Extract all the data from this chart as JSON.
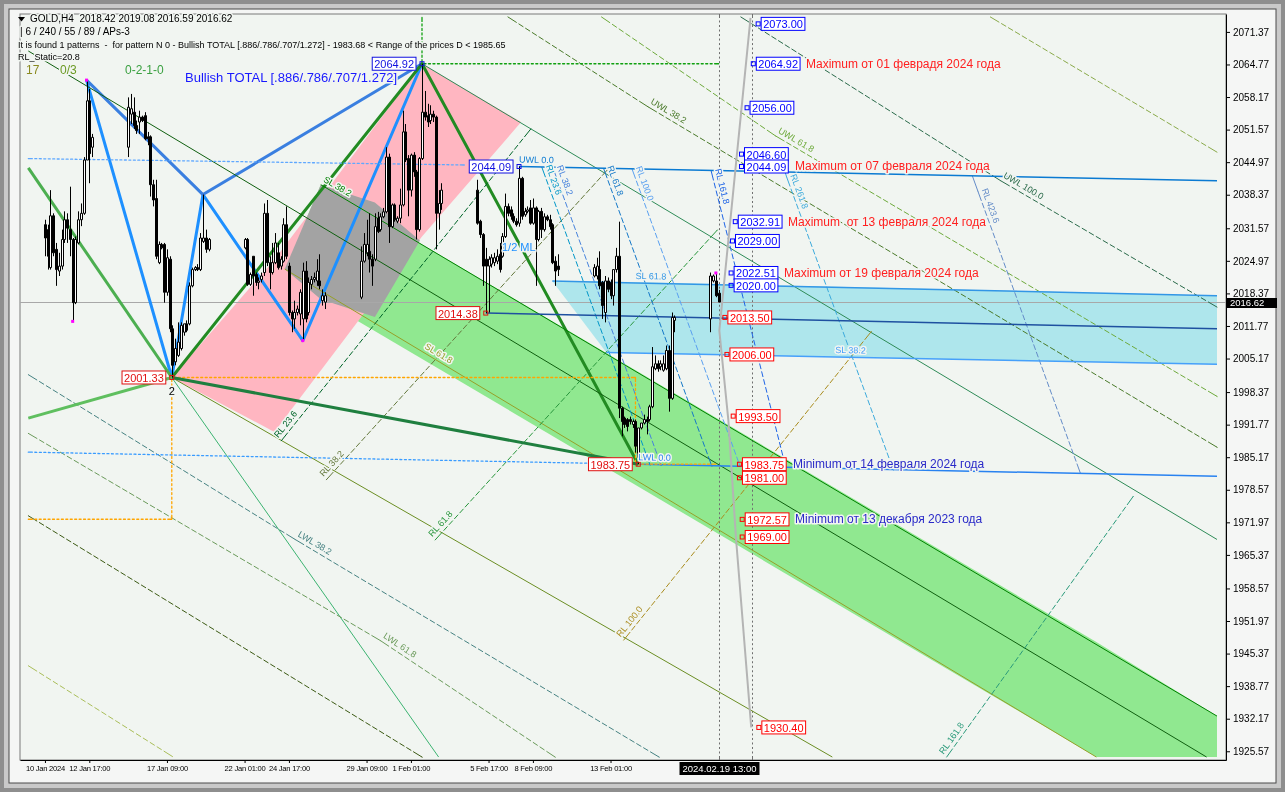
{
  "chart_data": {
    "type": "candlestick",
    "title": "GOLD,H4  2018.42 2019.08 2016.59 2016.62",
    "subtitle": "| 6 / 240 / 55 / 89 / APs-3",
    "annotations": [
      "It is found 1 patterns  -  for pattern N 0 - Bullish TOTAL [.886/.786/.707/1.272] - 1983.68 < Range of the prices D < 1985.65",
      "RL_Static=20.8",
      "17",
      "0/3",
      "0-2-1-0",
      "Bullish TOTAL [.886/.786/.707/1.272]",
      {
        "text": "2",
        "x": "2024-01-17T16:00",
        "y": 2001.33
      },
      "1/2 ML",
      "Maximum от 01 феврадя 2024 года",
      "Maximum от 07 февраля 2024 года",
      "Maximum  от 13 февраля 2024 года",
      "Maximum от 19 февраля 2024 года",
      "Minimum от 14 февраля 2024 года",
      "Minimum от 13 декабря 2023 года"
    ],
    "x": [
      "2024-01-10T01:00",
      "2024-01-10T05:00",
      "2024-01-10T09:00",
      "2024-01-10T13:00",
      "2024-01-10T17:00",
      "2024-01-10T21:00",
      "2024-01-11T01:00",
      "2024-01-11T05:00",
      "2024-01-11T09:00",
      "2024-01-11T13:00",
      "2024-01-11T17:00",
      "2024-01-11T21:00",
      "2024-01-12T01:00",
      "2024-01-12T05:00",
      "2024-01-12T09:00",
      "2024-01-12T13:00",
      "2024-01-12T17:00",
      "2024-01-12T21:00",
      "2024-01-15T01:00",
      "2024-01-15T05:00",
      "2024-01-15T09:00",
      "2024-01-15T13:00",
      "2024-01-15T17:00",
      "2024-01-15T21:00",
      "2024-01-16T01:00",
      "2024-01-16T05:00",
      "2024-01-16T09:00",
      "2024-01-16T13:00",
      "2024-01-16T17:00",
      "2024-01-16T21:00",
      "2024-01-17T01:00",
      "2024-01-17T05:00",
      "2024-01-17T09:00",
      "2024-01-17T13:00",
      "2024-01-17T17:00",
      "2024-01-17T21:00",
      "2024-01-18T01:00",
      "2024-01-18T05:00",
      "2024-01-18T09:00",
      "2024-01-18T13:00",
      "2024-01-18T17:00",
      "2024-01-18T21:00",
      "2024-01-19T01:00",
      "2024-01-19T05:00",
      "2024-01-19T09:00",
      "2024-01-19T13:00",
      "2024-01-19T17:00",
      "2024-01-19T21:00",
      "2024-01-22T01:00",
      "2024-01-22T05:00",
      "2024-01-22T09:00",
      "2024-01-22T13:00",
      "2024-01-22T17:00",
      "2024-01-22T21:00",
      "2024-01-23T01:00",
      "2024-01-23T05:00",
      "2024-01-23T09:00",
      "2024-01-23T13:00",
      "2024-01-23T17:00",
      "2024-01-23T21:00",
      "2024-01-24T01:00",
      "2024-01-24T05:00",
      "2024-01-24T09:00",
      "2024-01-24T13:00",
      "2024-01-24T17:00",
      "2024-01-24T21:00",
      "2024-01-25T01:00",
      "2024-01-25T05:00",
      "2024-01-25T09:00",
      "2024-01-25T13:00",
      "2024-01-25T17:00",
      "2024-01-25T21:00",
      "2024-01-26T01:00",
      "2024-01-26T05:00",
      "2024-01-26T09:00",
      "2024-01-26T13:00",
      "2024-01-26T17:00",
      "2024-01-26T21:00",
      "2024-01-29T01:00",
      "2024-01-29T05:00",
      "2024-01-29T09:00",
      "2024-01-29T13:00",
      "2024-01-29T17:00",
      "2024-01-29T21:00",
      "2024-01-30T01:00",
      "2024-01-30T05:00",
      "2024-01-30T09:00",
      "2024-01-30T13:00",
      "2024-01-30T17:00",
      "2024-01-30T21:00",
      "2024-01-31T01:00",
      "2024-01-31T05:00",
      "2024-01-31T09:00",
      "2024-01-31T13:00",
      "2024-01-31T17:00",
      "2024-01-31T21:00",
      "2024-02-01T01:00",
      "2024-02-01T05:00",
      "2024-02-01T09:00",
      "2024-02-01T13:00",
      "2024-02-01T17:00",
      "2024-02-01T21:00",
      "2024-02-02T01:00",
      "2024-02-02T05:00",
      "2024-02-02T09:00",
      "2024-02-02T13:00",
      "2024-02-02T17:00",
      "2024-02-02T21:00",
      "2024-02-05T01:00",
      "2024-02-05T05:00",
      "2024-02-05T09:00",
      "2024-02-05T13:00",
      "2024-02-05T17:00",
      "2024-02-05T21:00",
      "2024-02-06T01:00",
      "2024-02-06T05:00",
      "2024-02-06T09:00",
      "2024-02-06T13:00",
      "2024-02-06T17:00",
      "2024-02-06T21:00",
      "2024-02-07T01:00",
      "2024-02-07T05:00",
      "2024-02-07T09:00",
      "2024-02-07T13:00",
      "2024-02-07T17:00",
      "2024-02-07T21:00",
      "2024-02-08T01:00",
      "2024-02-08T05:00",
      "2024-02-08T09:00",
      "2024-02-08T13:00",
      "2024-02-08T17:00",
      "2024-02-08T21:00",
      "2024-02-09T01:00",
      "2024-02-09T05:00",
      "2024-02-09T09:00",
      "2024-02-09T13:00",
      "2024-02-09T17:00",
      "2024-02-09T21:00",
      "2024-02-12T01:00",
      "2024-02-12T05:00",
      "2024-02-12T09:00",
      "2024-02-12T13:00",
      "2024-02-12T17:00",
      "2024-02-12T21:00",
      "2024-02-13T01:00",
      "2024-02-13T05:00",
      "2024-02-13T09:00",
      "2024-02-13T13:00",
      "2024-02-13T17:00",
      "2024-02-13T21:00",
      "2024-02-14T01:00",
      "2024-02-14T05:00",
      "2024-02-14T09:00",
      "2024-02-14T13:00",
      "2024-02-14T17:00",
      "2024-02-14T21:00",
      "2024-02-15T01:00",
      "2024-02-15T05:00",
      "2024-02-15T09:00",
      "2024-02-15T13:00",
      "2024-02-15T17:00",
      "2024-02-15T21:00",
      "2024-02-16T01:00",
      "2024-02-16T05:00",
      "2024-02-16T09:00",
      "2024-02-16T13:00",
      "2024-02-16T17:00",
      "2024-02-16T21:00",
      "2024-02-19T01:00",
      "2024-02-19T05:00",
      "2024-02-19T09:00",
      "2024-02-19T13:00"
    ],
    "ohlc": [
      [
        2032.3,
        2033.3,
        2025.9,
        2029.6
      ],
      [
        2031.3,
        2032.3,
        2023.2,
        2025.9
      ],
      [
        2023.6,
        2039.3,
        2023.2,
        2034.1
      ],
      [
        2034.1,
        2034.6,
        2025.9,
        2026.6
      ],
      [
        2027.3,
        2028.6,
        2019.9,
        2023.2
      ],
      [
        2022.9,
        2026.6,
        2021.9,
        2023.9
      ],
      [
        2023.9,
        2031.3,
        2023.2,
        2029.3
      ],
      [
        2029.3,
        2035.0,
        2028.6,
        2033.3
      ],
      [
        2033.3,
        2034.6,
        2028.6,
        2031.6
      ],
      [
        2031.3,
        2040.0,
        2025.9,
        2029.3
      ],
      [
        2029.3,
        2029.6,
        2012.7,
        2016.5
      ],
      [
        2016.5,
        2029.9,
        2016.2,
        2029.3
      ],
      [
        2028.6,
        2035.0,
        2028.3,
        2033.3
      ],
      [
        2033.3,
        2036.6,
        2032.0,
        2034.6
      ],
      [
        2034.6,
        2046.0,
        2034.3,
        2045.4
      ],
      [
        2045.4,
        2061.6,
        2045.4,
        2057.4
      ],
      [
        2057.4,
        2059.8,
        2040.7,
        2046.7
      ],
      [
        2048.0,
        2050.7,
        2046.0,
        2050.0
      ],
      [
        2048.0,
        2058.1,
        2046.0,
        2056.1
      ],
      [
        2054.7,
        2058.8,
        2052.7,
        2055.8
      ],
      [
        2055.1,
        2058.1,
        2051.7,
        2052.4
      ],
      [
        2052.4,
        2053.4,
        2050.7,
        2051.4
      ],
      [
        2053.1,
        2055.4,
        2050.7,
        2054.1
      ],
      [
        2054.1,
        2054.4,
        2053.1,
        2053.4
      ],
      [
        2054.4,
        2055.1,
        2049.4,
        2049.7
      ],
      [
        2050.1,
        2051.1,
        2048.4,
        2049.7
      ],
      [
        2050.1,
        2050.4,
        2038.0,
        2040.4
      ],
      [
        2040.4,
        2041.4,
        2036.0,
        2037.3
      ],
      [
        2037.6,
        2041.4,
        2025.3,
        2025.9
      ],
      [
        2024.6,
        2028.9,
        2024.3,
        2028.3
      ],
      [
        2028.3,
        2028.6,
        2027.3,
        2027.6
      ],
      [
        2028.3,
        2028.6,
        2016.5,
        2018.6
      ],
      [
        2018.6,
        2027.3,
        2017.9,
        2025.6
      ],
      [
        2025.3,
        2025.9,
        2010.5,
        2011.2
      ],
      [
        2011.2,
        2011.9,
        2001.33,
        2003.8
      ],
      [
        2004.5,
        2009.2,
        2003.8,
        2007.2
      ],
      [
        2005.8,
        2012.5,
        2005.5,
        2008.5
      ],
      [
        2007.2,
        2012.5,
        2006.8,
        2011.9
      ],
      [
        2010.5,
        2012.2,
        2009.8,
        2012.2
      ],
      [
        2012.2,
        2012.9,
        2010.5,
        2010.9
      ],
      [
        2012.2,
        2020.6,
        2011.9,
        2019.9
      ],
      [
        2019.9,
        2023.6,
        2019.6,
        2023.2
      ],
      [
        2023.2,
        2023.9,
        2022.9,
        2023.6
      ],
      [
        2023.6,
        2024.3,
        2022.9,
        2023.2
      ],
      [
        2023.2,
        2030.6,
        2022.9,
        2029.6
      ],
      [
        2028.9,
        2038.4,
        2028.6,
        2029.6
      ],
      [
        2029.6,
        2031.3,
        2026.6,
        2027.3
      ],
      [
        2027.3,
        2029.6,
        2026.9,
        2029.3
      ],
      [
        2027.6,
        2029.6,
        2027.3,
        2029.3
      ],
      [
        2029.3,
        2029.6,
        2019.9,
        2020.2
      ],
      [
        2020.2,
        2022.6,
        2019.9,
        2022.2
      ],
      [
        2025.9,
        2025.9,
        2017.9,
        2021.9
      ],
      [
        2022.2,
        2022.6,
        2019.9,
        2020.6
      ],
      [
        2020.6,
        2021.6,
        2019.2,
        2020.9
      ],
      [
        2021.2,
        2022.6,
        2020.6,
        2021.9
      ],
      [
        2022.6,
        2036.6,
        2021.9,
        2034.6
      ],
      [
        2034.6,
        2037.3,
        2023.9,
        2024.6
      ],
      [
        2024.6,
        2025.9,
        2019.2,
        2022.6
      ],
      [
        2022.6,
        2028.6,
        2022.2,
        2024.6
      ],
      [
        2024.6,
        2030.6,
        2024.3,
        2028.6
      ],
      [
        2026.6,
        2028.6,
        2023.2,
        2023.6
      ],
      [
        2023.9,
        2025.9,
        2023.2,
        2025.3
      ],
      [
        2024.9,
        2033.6,
        2024.6,
        2032.3
      ],
      [
        2032.3,
        2036.0,
        2025.3,
        2025.9
      ],
      [
        2023.9,
        2024.6,
        2013.9,
        2014.5
      ],
      [
        2014.5,
        2014.9,
        2010.5,
        2013.2
      ],
      [
        2013.2,
        2016.9,
        2011.2,
        2014.5
      ],
      [
        2014.5,
        2015.9,
        2013.9,
        2015.2
      ],
      [
        2014.2,
        2019.2,
        2011.9,
        2018.6
      ],
      [
        2013.2,
        2024.6,
        2008.8,
        2022.9
      ],
      [
        2022.9,
        2024.9,
        2012.5,
        2013.2
      ],
      [
        2014.5,
        2021.6,
        2013.9,
        2020.6
      ],
      [
        2020.2,
        2021.9,
        2019.2,
        2021.2
      ],
      [
        2021.2,
        2022.6,
        2020.6,
        2021.6
      ],
      [
        2020.9,
        2025.3,
        2019.9,
        2022.9
      ],
      [
        2020.9,
        2026.3,
        2019.2,
        2019.9
      ],
      [
        2016.9,
        2019.2,
        2015.9,
        2017.9
      ],
      [
        2016.6,
        2018.6,
        2015.2,
        2017.9
      ],
      [
        2017.6,
        2027.9,
        2017.2,
        2024.9
      ],
      [
        2024.9,
        2030.6,
        2024.6,
        2028.3
      ],
      [
        2026.6,
        2033.3,
        2025.9,
        2028.3
      ],
      [
        2026.9,
        2034.6,
        2022.6,
        2025.3
      ],
      [
        2025.3,
        2026.3,
        2019.9,
        2023.9
      ],
      [
        2025.3,
        2034.6,
        2024.9,
        2031.9
      ],
      [
        2033.6,
        2034.9,
        2030.6,
        2030.9
      ],
      [
        2031.3,
        2034.6,
        2030.9,
        2033.9
      ],
      [
        2033.9,
        2035.7,
        2033.6,
        2034.9
      ],
      [
        2034.9,
        2048.0,
        2034.6,
        2046.0
      ],
      [
        2046.0,
        2046.7,
        2028.6,
        2031.9
      ],
      [
        2031.9,
        2036.6,
        2031.6,
        2036.3
      ],
      [
        2036.3,
        2036.6,
        2032.9,
        2033.3
      ],
      [
        2033.0,
        2034.0,
        2032.6,
        2033.6
      ],
      [
        2033.6,
        2039.6,
        2032.6,
        2036.3
      ],
      [
        2036.3,
        2055.4,
        2036.0,
        2051.1
      ],
      [
        2051.1,
        2052.7,
        2045.0,
        2045.4
      ],
      [
        2045.7,
        2046.4,
        2034.0,
        2039.3
      ],
      [
        2039.3,
        2046.7,
        2038.0,
        2046.4
      ],
      [
        2046.4,
        2047.0,
        2042.0,
        2043.0
      ],
      [
        2043.0,
        2043.4,
        2029.3,
        2031.3
      ],
      [
        2031.3,
        2046.0,
        2030.9,
        2045.7
      ],
      [
        2045.7,
        2064.92,
        2045.4,
        2055.1
      ],
      [
        2055.1,
        2059.4,
        2053.4,
        2054.1
      ],
      [
        2054.4,
        2056.8,
        2052.1,
        2053.1
      ],
      [
        2053.4,
        2056.5,
        2052.7,
        2054.7
      ],
      [
        2054.7,
        2055.4,
        2053.1,
        2054.1
      ],
      [
        2054.1,
        2054.4,
        2027.3,
        2034.6
      ],
      [
        2034.6,
        2039.3,
        2031.3,
        2036.6
      ],
      [
        2036.6,
        2040.7,
        2035.3,
        2039.3
      ],
      [
        2039.3,
        2041.4,
        2032.3,
        2032.6
      ],
      [
        2033.0,
        2033.3,
        2029.6,
        2030.3
      ],
      [
        2030.3,
        2030.6,
        2019.9,
        2023.9
      ],
      [
        2025.3,
        2027.6,
        2014.38,
        2023.9
      ],
      [
        2023.9,
        2025.9,
        2014.5,
        2025.3
      ],
      [
        2024.3,
        2026.3,
        2023.6,
        2025.6
      ],
      [
        2024.6,
        2026.6,
        2023.9,
        2025.6
      ],
      [
        2024.9,
        2027.3,
        2024.3,
        2025.9
      ],
      [
        2026.3,
        2028.6,
        2022.6,
        2023.2
      ],
      [
        2025.9,
        2030.6,
        2025.6,
        2029.9
      ],
      [
        2029.9,
        2038.6,
        2029.6,
        2036.0
      ],
      [
        2036.0,
        2036.6,
        2034.0,
        2034.6
      ],
      [
        2035.3,
        2036.0,
        2033.3,
        2034.0
      ],
      [
        2034.0,
        2034.6,
        2032.6,
        2033.0
      ],
      [
        2033.0,
        2033.6,
        2031.9,
        2032.3
      ],
      [
        2032.6,
        2044.09,
        2031.9,
        2041.7
      ],
      [
        2041.7,
        2042.0,
        2033.3,
        2034.0
      ],
      [
        2034.3,
        2035.7,
        2033.9,
        2035.0
      ],
      [
        2035.0,
        2036.0,
        2034.6,
        2035.3
      ],
      [
        2035.7,
        2037.3,
        2032.3,
        2032.6
      ],
      [
        2032.6,
        2037.6,
        2032.3,
        2035.7
      ],
      [
        2035.7,
        2036.0,
        2019.9,
        2029.3
      ],
      [
        2029.3,
        2035.3,
        2028.9,
        2035.0
      ],
      [
        2035.0,
        2035.7,
        2029.6,
        2031.3
      ],
      [
        2031.3,
        2034.6,
        2030.9,
        2033.9
      ],
      [
        2033.9,
        2034.3,
        2033.0,
        2033.3
      ],
      [
        2033.3,
        2034.3,
        2031.3,
        2031.9
      ],
      [
        2032.3,
        2032.6,
        2024.3,
        2024.6
      ],
      [
        2024.9,
        2025.9,
        2019.9,
        2022.9
      ],
      [
        2023.9,
        2026.3,
        2021.9,
        2023.2
      ],
      [
        2021.9,
        2024.3,
        2021.6,
        2023.6
      ],
      [
        2021.9,
        2025.6,
        2021.2,
        2023.9
      ],
      [
        2023.2,
        2026.9,
        2019.2,
        2019.9
      ],
      [
        2020.6,
        2020.9,
        2013.2,
        2015.9
      ],
      [
        2014.5,
        2021.9,
        2012.5,
        2020.9
      ],
      [
        2020.9,
        2021.6,
        2018.6,
        2019.2
      ],
      [
        2020.6,
        2021.2,
        2017.2,
        2017.9
      ],
      [
        2017.9,
        2023.2,
        2015.9,
        2023.2
      ],
      [
        2023.2,
        2027.6,
        2022.6,
        2025.9
      ],
      [
        2025.9,
        2032.91,
        1993.1,
        1995.1
      ],
      [
        1995.1,
        1995.4,
        1989.4,
        1992.4
      ],
      [
        1993.1,
        1993.4,
        1991.1,
        1991.8
      ],
      [
        1992.8,
        1993.1,
        1990.4,
        1991.4
      ],
      [
        1992.8,
        1993.4,
        1991.8,
        1992.4
      ],
      [
        1991.8,
        1992.8,
        1991.1,
        1992.4
      ],
      [
        1992.4,
        1992.8,
        1986.1,
        1987.4
      ],
      [
        1985.1,
        1991.1,
        1983.75,
        1991.1
      ],
      [
        1991.1,
        1992.1,
        1990.8,
        1992.1
      ],
      [
        1992.1,
        1993.8,
        1991.8,
        1992.8
      ],
      [
        1992.8,
        1993.4,
        1989.8,
        1992.4
      ],
      [
        1992.8,
        1995.8,
        1992.4,
        1995.4
      ],
      [
        1995.4,
        2007.5,
        1995.1,
        2003.5
      ],
      [
        2003.1,
        2005.8,
        2002.8,
        2004.1
      ],
      [
        2004.1,
        2004.8,
        2002.5,
        2003.1
      ],
      [
        2003.5,
        2004.8,
        2002.8,
        2004.1
      ],
      [
        2002.8,
        2005.8,
        2002.5,
        2004.1
      ],
      [
        2003.1,
        2007.8,
        2002.8,
        2006.8
      ],
      [
        2006.8,
        2007.8,
        1994.4,
        1997.1
      ],
      [
        1997.1,
        2014.5,
        1996.8,
        2013.5
      ],
      [
        2012.9,
        2013.9,
        2010.5,
        2013.5
      ],
      [
        2013.2,
        2022.6,
        2010.5,
        2021.9
      ],
      [
        2020.9,
        2022.2,
        2020.6,
        2021.9
      ],
      [
        2020.9,
        2022.51,
        2017.6,
        2017.9
      ],
      [
        2018.42,
        2019.08,
        2016.59,
        2016.62
      ]
    ],
    "xlim": [
      "2024-01-08T13:00",
      "2024-03-21T01:00"
    ],
    "xticks": [
      {
        "value": "2024-01-10T01:00",
        "label": "10 Jan 2024"
      },
      {
        "value": "2024-01-12T17:00",
        "label": "12 Jan 17:00"
      },
      {
        "value": "2024-01-17T09:00",
        "label": "17 Jan 09:00"
      },
      {
        "value": "2024-01-22T01:00",
        "label": "22 Jan 01:00"
      },
      {
        "value": "2024-01-24T17:00",
        "label": "24 Jan 17:00"
      },
      {
        "value": "2024-01-29T09:00",
        "label": "29 Jan 09:00"
      },
      {
        "value": "2024-02-01T01:00",
        "label": "1 Feb 01:00"
      },
      {
        "value": "2024-02-05T17:00",
        "label": "5 Feb 17:00"
      },
      {
        "value": "2024-02-08T09:00",
        "label": "8 Feb 09:00"
      },
      {
        "value": "2024-02-13T01:00",
        "label": "13 Feb 01:00"
      }
    ],
    "ylim": [
      1923.8,
      2075.0
    ],
    "yticks": [
      2071.37,
      2064.77,
      2058.17,
      2051.57,
      2044.97,
      2038.37,
      2031.57,
      2024.97,
      2018.37,
      2011.77,
      2005.17,
      1998.37,
      1991.77,
      1985.17,
      1978.57,
      1971.97,
      1965.37,
      1958.57,
      1951.97,
      1945.37,
      1938.77,
      1932.17,
      1925.57
    ],
    "ref_lines": [
      {
        "axis": "x",
        "value": "2024-02-19T13:00",
        "label": "2024.02.19 13:00",
        "line_style": "dotted",
        "color": "#6e6e6e"
      },
      {
        "axis": "x",
        "value": "2024-02-21T13:00",
        "line_style": "dotted",
        "color": "#6e6e6e"
      },
      {
        "axis": "y",
        "value": 2016.62,
        "label": "2016.62",
        "color": "#a8a8a8"
      }
    ],
    "series": [
      {
        "type": "line",
        "color": "#90e890",
        "x": [
          "2024-01-24T11:00",
          "2024-01-26T15:00",
          "2024-03-13T06:00",
          "2024-03-20T12:00"
        ],
        "values": [
          null,
          null,
          null,
          null
        ],
        "upper": [
          2023.3,
          2040.4,
          1947.7,
          1932.7
        ],
        "lower": [
          2023.3,
          2017.2,
          1924.4,
          1924.4
        ]
      },
      {
        "type": "line",
        "color": "#ffb6c1",
        "x": [
          "2024-01-17T16:00",
          "2024-01-23T20:00",
          "2024-02-01T17:00",
          "2024-02-07T16:00"
        ],
        "values": [
          null,
          null,
          null,
          null
        ],
        "upper": [
          2001.33,
          2025.2,
          2064.92,
          2053.1
        ],
        "lower": [
          2001.33,
          1990.3,
          2029.9,
          2053.1
        ]
      },
      {
        "type": "line",
        "color": "#a3a3a3",
        "x": [
          "2024-01-24T11:00",
          "2024-01-26T15:00",
          "2024-01-29T21:00",
          "2024-02-01T14:00"
        ],
        "values": [
          null,
          null,
          null,
          null
        ],
        "upper": [
          2023.3,
          2040.4,
          2036.8,
          2029.1
        ],
        "lower": [
          2023.3,
          2017.2,
          2013.6,
          2029.1
        ]
      },
      {
        "type": "line",
        "color": "#aee6ec",
        "x": [
          "2024-02-09T13:00",
          "2024-02-12T19:00",
          "2024-03-20T12:00"
        ],
        "values": [
          null,
          null,
          null
        ],
        "upper": [
          2020.9,
          2020.8,
          2017.9
        ],
        "lower": [
          2020.9,
          2006.4,
          2004.0
        ]
      },
      {
        "type": "line",
        "color": "#1e90ff",
        "x": [
          "2024-01-12T13:00",
          "2024-01-17T16:00",
          "2024-01-19T13:00",
          "2024-01-25T13:00",
          "2024-02-01T17:00"
        ],
        "values": [
          2061.6,
          2001.33,
          2038.4,
          2008.8,
          2064.92
        ]
      },
      {
        "type": "line",
        "color": "#3a7fe0",
        "x": [
          "2024-01-12T13:00",
          "2024-01-19T13:00",
          "2024-02-01T17:00"
        ],
        "values": [
          2061.6,
          2038.4,
          2064.92
        ]
      },
      {
        "type": "line",
        "color": "#228b22",
        "x": [
          "2024-01-17T16:00",
          "2024-02-01T17:00",
          "2024-02-14T17:00"
        ],
        "values": [
          2001.33,
          2064.92,
          1983.75
        ]
      },
      {
        "type": "line",
        "color": "#4caf50",
        "x": [
          "2024-01-09T01:00",
          "2024-01-17T16:00"
        ],
        "values": [
          2043.8,
          2001.33
        ]
      },
      {
        "type": "line",
        "color": "#0f5f0f",
        "x": [
          "2024-01-09T01:00",
          "2024-03-19T21:00"
        ],
        "values": [
          2067.5,
          1924.4
        ]
      },
      {
        "type": "line",
        "color": "#2e8b57",
        "x": [
          "2024-02-01T17:00",
          "2024-03-20T12:00"
        ],
        "values": [
          2064.92,
          1968.5
        ]
      },
      {
        "type": "line",
        "color": "#6b8e23",
        "x": [
          "2024-01-17T16:00",
          "2024-02-26T09:00"
        ],
        "values": [
          2001.33,
          1924.4
        ]
      },
      {
        "type": "line",
        "color": "#3cb371",
        "x": [
          "2024-01-17T16:00",
          "2024-02-02T17:00"
        ],
        "values": [
          2001.33,
          1924.4
        ]
      },
      {
        "type": "line",
        "name": "SL 38.2",
        "color": "#008000",
        "x": [
          "2024-01-26T15:00",
          "2024-03-20T12:00"
        ],
        "values": [
          2040.4,
          1932.7
        ]
      },
      {
        "type": "line",
        "name": "SL 61.8",
        "color": "#96a028",
        "x": [
          "2024-01-24T11:00",
          "2024-02-01T17:00",
          "2024-03-13T06:00"
        ],
        "values": [
          2023.3,
          2006.6,
          1924.4
        ]
      },
      {
        "type": "line",
        "name": "UWL 38.2",
        "color": "#4a7a2a",
        "line_style": "dashed",
        "x": [
          "2024-02-06T21:00",
          "2024-02-15T07:00",
          "2024-03-20T12:00"
        ],
        "values": [
          2074.4,
          2056.2,
          1987.2
        ]
      },
      {
        "type": "line",
        "name": "UWL 61.8",
        "color": "#6eaa3c",
        "line_style": "dashed",
        "x": [
          "2024-02-12T12:00",
          "2024-02-22T23:00",
          "2024-03-20T12:00"
        ],
        "values": [
          2074.4,
          2050.3,
          1997.5
        ]
      },
      {
        "type": "line",
        "name": "UWL 100.0",
        "color": "#2a6a4a",
        "line_style": "dashed",
        "x": [
          "2024-02-20T21:00",
          "2024-03-07T12:00",
          "2024-03-20T12:00"
        ],
        "values": [
          2074.4,
          2041.2,
          2015.6
        ]
      },
      {
        "type": "line",
        "color": "#8aaa4a",
        "line_style": "dashed",
        "x": [
          "2024-03-06T21:00",
          "2024-03-20T12:00"
        ],
        "values": [
          2074.4,
          2047.0
        ]
      },
      {
        "type": "line",
        "name": "LWL 38.2",
        "color": "#468282",
        "line_style": "dashed",
        "x": [
          "2024-01-09T01:00",
          "2024-01-25T02:00",
          "2024-02-15T23:00"
        ],
        "values": [
          2001.9,
          1968.5,
          1924.4
        ]
      },
      {
        "type": "line",
        "name": "LWL 61.8",
        "color": "#6a9a5a",
        "line_style": "dashed",
        "x": [
          "2024-01-09T01:00",
          "2024-01-30T05:00",
          "2024-02-09T17:00"
        ],
        "values": [
          1990.0,
          1948.0,
          1924.4
        ]
      },
      {
        "type": "line",
        "color": "#3c5a14",
        "line_style": "dashed",
        "x": [
          "2024-01-09T01:00",
          "2024-02-01T17:00"
        ],
        "values": [
          1973.3,
          1924.4
        ]
      },
      {
        "type": "line",
        "color": "#aabe5a",
        "line_style": "dashed",
        "x": [
          "2024-01-09T01:00",
          "2024-01-17T17:00"
        ],
        "values": [
          1942.9,
          1924.5
        ]
      },
      {
        "type": "line",
        "name": "RL 23.6",
        "color": "#006428",
        "line_style": "dashed",
        "x": [
          "2024-01-24T06:00",
          "2024-02-08T06:00"
        ],
        "values": [
          1988.5,
          2051.7
        ]
      },
      {
        "type": "line",
        "name": "RL 38.2",
        "color": "#64783c",
        "line_style": "dashed",
        "x": [
          "2024-01-26T23:00",
          "2024-02-12T23:00"
        ],
        "values": [
          1980.6,
          2043.8
        ]
      },
      {
        "type": "line",
        "name": "RL 61.8",
        "color": "#28963c",
        "line_style": "dashed",
        "x": [
          "2024-02-02T12:00",
          "2024-02-19T11:00"
        ],
        "values": [
          1968.4,
          2031.2
        ]
      },
      {
        "type": "line",
        "name": "RL 100.0",
        "color": "#aa8c1e",
        "line_style": "dashed",
        "x": [
          "2024-02-13T20:00",
          "2024-02-28T17:00"
        ],
        "values": [
          1948.1,
          2010.6
        ]
      },
      {
        "type": "line",
        "name": "RL 161.8",
        "color": "#2a9a7a",
        "line_style": "dashed",
        "x": [
          "2024-03-04T06:00",
          "2024-03-15T11:00"
        ],
        "values": [
          1924.4,
          1977.2
        ]
      },
      {
        "type": "line",
        "name": "RL 23.6",
        "color": "#0096c8",
        "line_style": "dashed",
        "x": [
          "2024-02-08T22:00",
          "2024-02-15T10:00"
        ],
        "values": [
          2043.9,
          1983.6
        ]
      },
      {
        "type": "line",
        "name": "RL 38.2",
        "color": "#4682dc",
        "line_style": "dashed",
        "x": [
          "2024-02-09T14:00",
          "2024-02-16T02:00"
        ],
        "values": [
          2043.8,
          1983.5
        ]
      },
      {
        "type": "line",
        "name": "RL 61.8",
        "color": "#1478c8",
        "line_style": "dashed",
        "x": [
          "2024-02-12T15:00",
          "2024-02-19T03:00"
        ],
        "values": [
          2043.7,
          1983.4
        ]
      },
      {
        "type": "line",
        "name": "RL 100.0",
        "color": "#5aa0f0",
        "line_style": "dashed",
        "x": [
          "2024-02-14T08:00",
          "2024-02-20T20:00"
        ],
        "values": [
          2043.6,
          1983.3
        ]
      },
      {
        "type": "line",
        "name": "RL 161.8",
        "color": "#1e64e6",
        "line_style": "dashed",
        "x": [
          "2024-02-19T02:00",
          "2024-02-23T14:00"
        ],
        "values": [
          2043.3,
          1983.0
        ]
      },
      {
        "type": "line",
        "name": "RL 261.8",
        "color": "#3caadc",
        "line_style": "dashed",
        "x": [
          "2024-02-23T13:00",
          "2024-02-23T15:00",
          "2024-03-01T01:00"
        ],
        "values": [
          2042.9,
          2042.0,
          1982.6
        ]
      },
      {
        "type": "line",
        "name": "RL 423.6",
        "color": "#648cc8",
        "line_style": "dashed",
        "x": [
          "2024-03-05T19:00",
          "2024-03-06T03:00",
          "2024-03-12T07:00"
        ],
        "values": [
          2042.2,
          2039.1,
          1981.9
        ]
      },
      {
        "type": "line",
        "name": "UWL 0.0",
        "color": "#0a7ad2",
        "x": [
          "2024-02-07T13:00",
          "2024-03-20T12:00"
        ],
        "values": [
          2044.09,
          2041.2
        ]
      },
      {
        "type": "line",
        "name": "SL 61.8",
        "color": "#3296e6",
        "x": [
          "2024-02-09T13:00",
          "2024-02-14T13:00",
          "2024-03-20T12:00"
        ],
        "values": [
          2020.9,
          2020.5,
          2017.9
        ]
      },
      {
        "type": "line",
        "color": "#1e50a0",
        "x": [
          "2024-02-05T13:00",
          "2024-03-20T12:00"
        ],
        "values": [
          2014.38,
          2011.2
        ]
      },
      {
        "type": "line",
        "name": "SL 38.2",
        "color": "#46a0fa",
        "x": [
          "2024-02-12T19:00",
          "2024-02-26T13:00",
          "2024-03-20T12:00"
        ],
        "values": [
          2006.4,
          2005.5,
          2004.0
        ]
      },
      {
        "type": "line",
        "name": "LWL 0.0",
        "color": "#2882f0",
        "x": [
          "2024-02-14T17:00",
          "2024-03-20T12:00"
        ],
        "values": [
          1983.75,
          1981.3
        ]
      },
      {
        "type": "line",
        "color": "#5fa8ff",
        "line_style": "dotted",
        "x": [
          "2024-01-09T01:00",
          "2024-02-04T06:00"
        ],
        "values": [
          2045.7,
          2044.4
        ]
      },
      {
        "type": "line",
        "color": "#3a9cff",
        "line_style": "dotted",
        "x": [
          "2024-01-09T01:00",
          "2024-02-14T17:00"
        ],
        "values": [
          1986.2,
          1983.75
        ]
      },
      {
        "type": "line",
        "color": "#ffa500",
        "line_style": "dotted",
        "x": [
          "2024-01-09T01:00",
          "2024-01-17T16:00",
          "2024-01-17T16:00",
          "2024-02-14T13:00",
          "2024-02-14T13:00",
          "2024-02-19T09:00"
        ],
        "values": [
          1972.6,
          1972.6,
          2001.33,
          2001.33,
          1983.75,
          1983.75
        ]
      },
      {
        "type": "line",
        "color": "#10a010",
        "line_style": "dotted",
        "x": [
          "2024-02-01T17:00",
          "2024-02-01T17:00",
          "2024-02-19T13:00"
        ],
        "values": [
          2074.3,
          2064.92,
          2064.92
        ]
      },
      {
        "type": "line",
        "color": "#b4b4b4",
        "x": [
          "2024-02-21T11:00",
          "2024-02-19T14:00",
          "2024-02-20T03:00",
          "2024-02-20T14:00",
          "2024-02-21T12:00"
        ],
        "values": [
          2074.2,
          2010.8,
          1992.7,
          1968.8,
          1930.4
        ]
      },
      {
        "type": "scatter",
        "color": "#ff00ff",
        "marker": "square",
        "x": [
          "2024-01-11T17:00",
          "2024-01-12T13:00",
          "2024-01-25T13:00",
          "2024-02-19T09:00"
        ],
        "values": [
          2012.7,
          2061.6,
          2008.8,
          2022.51
        ]
      },
      {
        "type": "scatter",
        "color": "#0000ff",
        "marker": "square",
        "x": [
          "2024-02-21T22:00",
          "2024-02-21T15:00",
          "2024-02-21T06:00",
          "2024-02-20T22:00",
          "2024-02-20T22:00",
          "2024-02-20T13:00",
          "2024-02-20T09:00",
          "2024-02-20T07:00",
          "2024-02-20T07:00"
        ],
        "values": [
          2073.0,
          2064.92,
          2056.0,
          2046.6,
          2044.09,
          2032.91,
          2029.0,
          2022.51,
          2020.0
        ],
        "value_labels": [
          "2073.00",
          "2064.92",
          "2056.00",
          "2046.60",
          "2044.09",
          "2032.91",
          "2029.00",
          "2022.51",
          "2020.00"
        ]
      },
      {
        "type": "scatter",
        "color": "#ff0000",
        "marker": "square",
        "x": [
          "2024-02-19T22:00",
          "2024-02-20T01:00",
          "2024-02-20T10:00",
          "2024-02-20T19:00",
          "2024-02-20T19:00",
          "2024-02-20T23:00",
          "2024-02-20T23:00",
          "2024-02-21T23:00"
        ],
        "values": [
          2013.5,
          2006.0,
          1993.5,
          1983.75,
          1981.0,
          1972.57,
          1969.0,
          1930.4
        ],
        "value_labels": [
          "2013.50",
          "2006.00",
          "1993.50",
          "1983.75",
          "1981.00",
          "1972.57",
          "1969.00",
          "1930.40"
        ]
      },
      {
        "type": "scatter",
        "color": "#1010e0",
        "marker": "square",
        "x": [
          "2024-02-01T17:00",
          "2024-02-07T13:00"
        ],
        "values": [
          2064.92,
          2044.09
        ],
        "value_labels": [
          "2064.92",
          "2044.09"
        ]
      },
      {
        "type": "scatter",
        "color": "#e01010",
        "marker": "square",
        "x": [
          "2024-01-17T16:00",
          "2024-02-05T13:00",
          "2024-02-14T17:00"
        ],
        "values": [
          2001.33,
          2014.38,
          1983.75
        ],
        "value_labels": [
          "2001.33",
          "2014.38",
          "1983.75"
        ]
      },
      {
        "type": "line",
        "color": "#1f7f3f",
        "x": [
          "2024-01-17T16:00",
          "2024-02-14T17:00"
        ],
        "values": [
          2001.33,
          1983.75
        ]
      },
      {
        "type": "line",
        "color": "#5fbf5f",
        "x": [
          "2024-01-09T01:00",
          "2024-01-17T16:00"
        ],
        "values": [
          1993.1,
          2001.33
        ]
      }
    ]
  }
}
